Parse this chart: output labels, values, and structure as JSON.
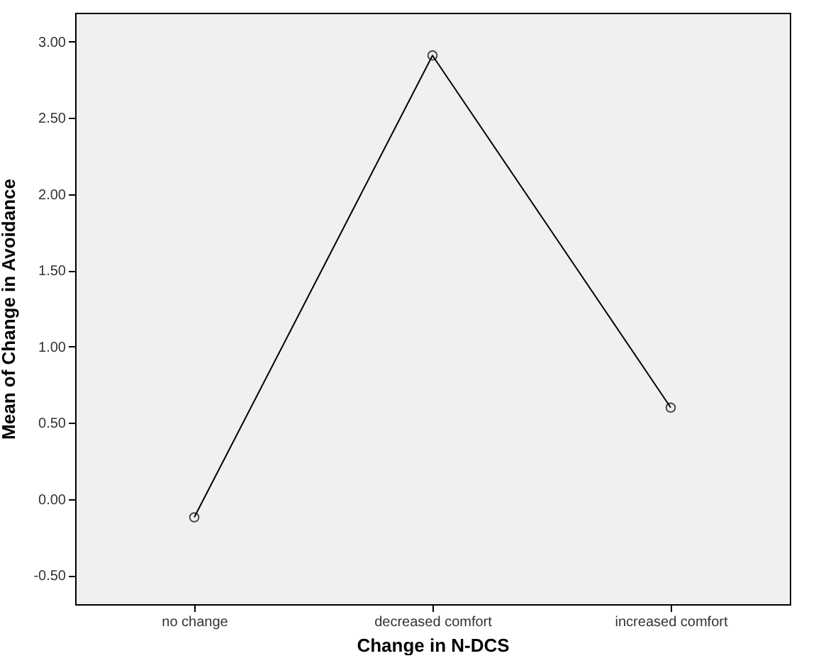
{
  "chart_data": {
    "type": "line",
    "xlabel": "Change in N-DCS",
    "ylabel": "Mean of Change in Avoidance",
    "categories": [
      "no change",
      "decreased comfort",
      "increased comfort"
    ],
    "series": [
      {
        "color": "#000000",
        "values": [
          -0.12,
          2.91,
          0.6
        ]
      }
    ],
    "ylim": [
      -0.69,
      3.19
    ],
    "yticks": [
      {
        "value": -0.5,
        "label": "-0.50"
      },
      {
        "value": 0,
        "label": "0.00"
      },
      {
        "value": 0.5,
        "label": "0.50"
      },
      {
        "value": 1,
        "label": "1.00"
      },
      {
        "value": 1.5,
        "label": "1.50"
      },
      {
        "value": 2,
        "label": "2.00"
      },
      {
        "value": 2.5,
        "label": "2.50"
      },
      {
        "value": 3,
        "label": "3.00"
      }
    ],
    "grid": false,
    "marker": "circle",
    "line_style": "solid"
  }
}
